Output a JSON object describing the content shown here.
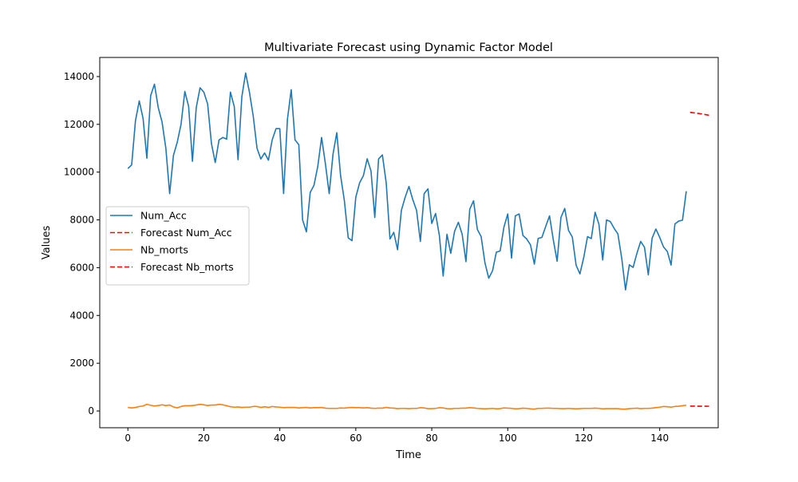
{
  "chart_data": {
    "type": "line",
    "title": "Multivariate Forecast using Dynamic Factor Model",
    "xlabel": "Time",
    "ylabel": "Values",
    "xlim": [
      -7.4,
      155.4
    ],
    "ylim": [
      -700,
      14800
    ],
    "xticks": [
      0,
      20,
      40,
      60,
      80,
      100,
      120,
      140
    ],
    "yticks": [
      0,
      2000,
      4000,
      6000,
      8000,
      10000,
      12000,
      14000
    ],
    "grid": false,
    "legend_position": "center-left",
    "series": [
      {
        "name": "Num_Acc",
        "color": "#1f77b4",
        "style": "solid",
        "x_start": 0,
        "values": [
          10150,
          10300,
          12150,
          12980,
          12250,
          10580,
          13200,
          13680,
          12700,
          12100,
          11000,
          9100,
          10700,
          11250,
          12000,
          13380,
          12750,
          10450,
          12700,
          13530,
          13350,
          12850,
          11200,
          10400,
          11350,
          11450,
          11380,
          13350,
          12750,
          10520,
          13150,
          14150,
          13350,
          12350,
          11000,
          10550,
          10800,
          10500,
          11350,
          11820,
          11820,
          9100,
          12200,
          13450,
          11350,
          11150,
          8000,
          7500,
          9150,
          9450,
          10250,
          11450,
          10350,
          9100,
          10750,
          11650,
          9850,
          8800,
          7250,
          7130,
          8950,
          9550,
          9850,
          10560,
          10050,
          8100,
          10550,
          10720,
          9560,
          7200,
          7480,
          6750,
          8400,
          8950,
          9400,
          8850,
          8400,
          7100,
          9100,
          9300,
          7850,
          8270,
          7350,
          5650,
          7400,
          6600,
          7520,
          7900,
          7400,
          6250,
          8450,
          8800,
          7600,
          7300,
          6200,
          5560,
          5870,
          6650,
          6700,
          7700,
          8250,
          6400,
          8170,
          8250,
          7350,
          7200,
          6950,
          6150,
          7220,
          7270,
          7730,
          8170,
          7160,
          6270,
          8100,
          8480,
          7560,
          7280,
          6100,
          5740,
          6420,
          7300,
          7220,
          8320,
          7820,
          6320,
          8000,
          7930,
          7650,
          7410,
          6400,
          5070,
          6120,
          6010,
          6600,
          7100,
          6850,
          5700,
          7230,
          7620,
          7270,
          6870,
          6680,
          6110,
          7830,
          7950,
          7990,
          9200
        ]
      },
      {
        "name": "Forecast Num_Acc",
        "color": "#ff0000",
        "style": "dashed",
        "x_start": 148,
        "values": [
          12500,
          12480,
          12460,
          12440,
          12410,
          12380
        ]
      },
      {
        "name": "Nb_morts",
        "color": "#ff7f0e",
        "style": "solid",
        "x_start": 0,
        "values": [
          150,
          130,
          150,
          190,
          210,
          280,
          240,
          210,
          230,
          260,
          230,
          250,
          170,
          130,
          190,
          220,
          220,
          230,
          250,
          280,
          260,
          230,
          250,
          250,
          280,
          260,
          220,
          180,
          160,
          170,
          150,
          160,
          160,
          190,
          190,
          150,
          180,
          150,
          190,
          170,
          160,
          140,
          150,
          150,
          150,
          130,
          140,
          150,
          130,
          140,
          140,
          150,
          120,
          110,
          110,
          110,
          130,
          120,
          140,
          150,
          140,
          140,
          130,
          140,
          120,
          110,
          120,
          120,
          150,
          130,
          120,
          100,
          110,
          110,
          100,
          110,
          110,
          140,
          130,
          100,
          100,
          110,
          140,
          130,
          100,
          90,
          110,
          110,
          120,
          120,
          140,
          130,
          110,
          100,
          90,
          100,
          110,
          90,
          100,
          130,
          120,
          110,
          90,
          100,
          120,
          110,
          90,
          80,
          110,
          110,
          120,
          120,
          110,
          110,
          100,
          100,
          110,
          100,
          90,
          100,
          110,
          110,
          110,
          120,
          110,
          90,
          100,
          100,
          100,
          100,
          80,
          80,
          100,
          110,
          120,
          100,
          110,
          110,
          120,
          140,
          160,
          190,
          180,
          160,
          190,
          200,
          220,
          240
        ]
      },
      {
        "name": "Forecast Nb_morts",
        "color": "#ff0000",
        "style": "dashed",
        "x_start": 148,
        "values": [
          205,
          203,
          201,
          200,
          199,
          198
        ]
      }
    ]
  }
}
